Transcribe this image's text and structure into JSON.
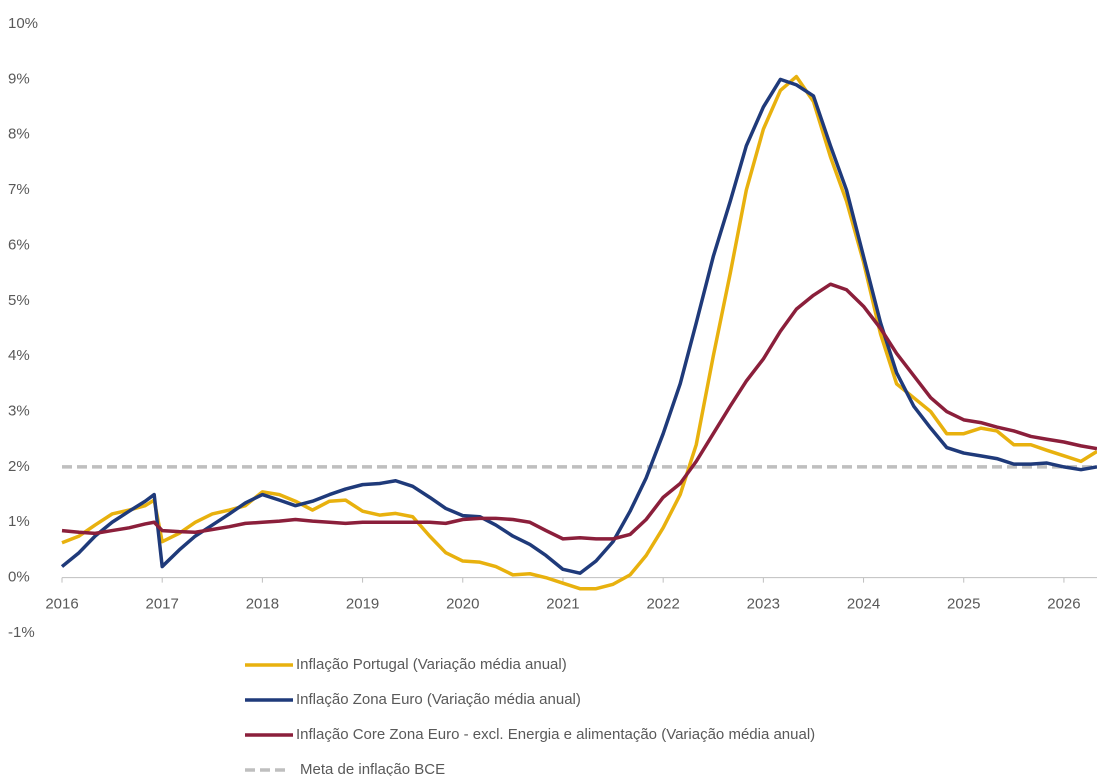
{
  "chart_data": {
    "type": "line",
    "x": [
      2016.0,
      2016.17,
      2016.33,
      2016.5,
      2016.67,
      2016.83,
      2016.92,
      2017.0,
      2017.17,
      2017.33,
      2017.5,
      2017.67,
      2017.83,
      2018.0,
      2018.17,
      2018.33,
      2018.5,
      2018.67,
      2018.83,
      2019.0,
      2019.17,
      2019.33,
      2019.5,
      2019.67,
      2019.83,
      2020.0,
      2020.17,
      2020.33,
      2020.5,
      2020.67,
      2020.83,
      2021.0,
      2021.17,
      2021.33,
      2021.5,
      2021.67,
      2021.83,
      2022.0,
      2022.17,
      2022.33,
      2022.5,
      2022.67,
      2022.83,
      2023.0,
      2023.17,
      2023.33,
      2023.5,
      2023.67,
      2023.83,
      2024.0,
      2024.17,
      2024.33,
      2024.5,
      2024.67,
      2024.83,
      2025.0,
      2025.17,
      2025.33,
      2025.5,
      2025.67,
      2025.83,
      2026.0,
      2026.17,
      2026.33
    ],
    "series": [
      {
        "name": "Inflação Portugal (Variação média anual)",
        "color": "#e8b10e",
        "values": [
          0.63,
          0.75,
          0.95,
          1.15,
          1.22,
          1.3,
          1.4,
          0.65,
          0.8,
          1.0,
          1.15,
          1.22,
          1.3,
          1.55,
          1.5,
          1.38,
          1.22,
          1.38,
          1.4,
          1.2,
          1.13,
          1.16,
          1.1,
          0.75,
          0.45,
          0.3,
          0.28,
          0.2,
          0.05,
          0.07,
          0.0,
          -0.1,
          -0.2,
          -0.2,
          -0.12,
          0.05,
          0.4,
          0.9,
          1.5,
          2.4,
          4.0,
          5.5,
          7.0,
          8.1,
          8.8,
          9.05,
          8.6,
          7.6,
          6.8,
          5.7,
          4.4,
          3.5,
          3.25,
          3.0,
          2.6,
          2.6,
          2.7,
          2.65,
          2.4,
          2.4,
          2.3,
          2.2,
          2.1,
          2.28
        ]
      },
      {
        "name": "Inflação Zona Euro (Variação média anual)",
        "color": "#1f3a7a",
        "values": [
          0.2,
          0.45,
          0.75,
          1.0,
          1.2,
          1.38,
          1.5,
          0.2,
          0.5,
          0.75,
          0.95,
          1.15,
          1.35,
          1.5,
          1.4,
          1.3,
          1.38,
          1.5,
          1.6,
          1.68,
          1.7,
          1.75,
          1.65,
          1.45,
          1.25,
          1.12,
          1.1,
          0.95,
          0.75,
          0.6,
          0.4,
          0.15,
          0.08,
          0.3,
          0.65,
          1.2,
          1.8,
          2.6,
          3.5,
          4.6,
          5.8,
          6.8,
          7.8,
          8.5,
          9.0,
          8.9,
          8.7,
          7.8,
          7.0,
          5.8,
          4.6,
          3.7,
          3.1,
          2.7,
          2.35,
          2.25,
          2.2,
          2.15,
          2.05,
          2.05,
          2.07,
          2.0,
          1.95,
          2.0
        ]
      },
      {
        "name": "Inflação Core Zona Euro - excl. Energia e alimentação (Variação média anual)",
        "color": "#8b1f3b",
        "values": [
          0.85,
          0.82,
          0.8,
          0.85,
          0.9,
          0.97,
          1.0,
          0.85,
          0.83,
          0.82,
          0.87,
          0.92,
          0.98,
          1.0,
          1.02,
          1.05,
          1.02,
          1.0,
          0.98,
          1.0,
          1.0,
          1.0,
          1.0,
          1.0,
          0.98,
          1.05,
          1.07,
          1.07,
          1.05,
          1.0,
          0.85,
          0.7,
          0.72,
          0.7,
          0.7,
          0.78,
          1.05,
          1.45,
          1.7,
          2.1,
          2.6,
          3.1,
          3.55,
          3.95,
          4.45,
          4.85,
          5.1,
          5.3,
          5.2,
          4.9,
          4.5,
          4.05,
          3.65,
          3.25,
          3.0,
          2.85,
          2.8,
          2.72,
          2.65,
          2.55,
          2.5,
          2.45,
          2.38,
          2.33
        ]
      }
    ],
    "target": {
      "name": "Meta de inflação BCE",
      "color": "#bfbfbf",
      "value": 2
    },
    "xlim": [
      2016,
      2026.33
    ],
    "xticks": [
      2016,
      2017,
      2018,
      2019,
      2020,
      2021,
      2022,
      2023,
      2024,
      2025,
      2026
    ],
    "ylim": [
      -1,
      10
    ],
    "yticks": [
      {
        "value": -1,
        "label": "-1%"
      },
      {
        "value": 0,
        "label": "0%"
      },
      {
        "value": 1,
        "label": "1%"
      },
      {
        "value": 2,
        "label": "2%"
      },
      {
        "value": 3,
        "label": "3%"
      },
      {
        "value": 4,
        "label": "4%"
      },
      {
        "value": 5,
        "label": "5%"
      },
      {
        "value": 6,
        "label": "6%"
      },
      {
        "value": 7,
        "label": "7%"
      },
      {
        "value": 8,
        "label": "8%"
      },
      {
        "value": 9,
        "label": "9%"
      },
      {
        "value": 10,
        "label": "10%"
      }
    ],
    "grid": false
  }
}
